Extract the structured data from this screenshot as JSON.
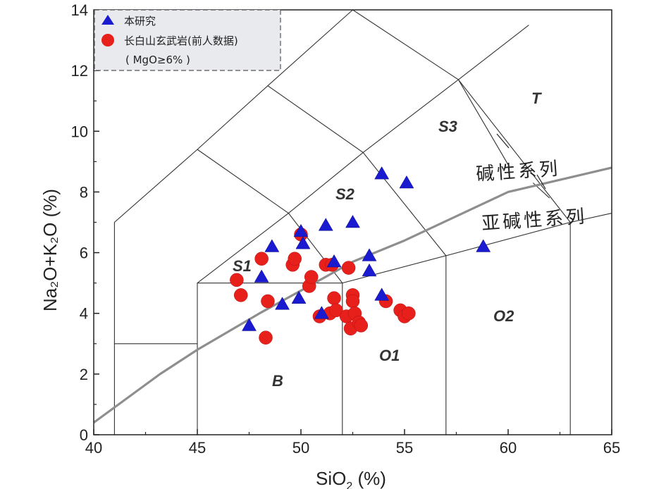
{
  "chart_data": {
    "type": "scatter",
    "xlabel_main": "SiO",
    "xlabel_sub": "2",
    "xlabel_tail": " (%)",
    "ylabel": "Na₂O+K₂O (%)",
    "xlim": [
      40,
      65
    ],
    "ylim": [
      0,
      14
    ],
    "xticks": [
      "40",
      "45",
      "50",
      "55",
      "60",
      "65"
    ],
    "yticks": [
      "0",
      "2",
      "4",
      "6",
      "8",
      "10",
      "12",
      "14"
    ],
    "field_labels": [
      "S1",
      "S2",
      "S3",
      "T",
      "B",
      "O1",
      "O2"
    ],
    "series_labels": {
      "alkaline": "碱性系列",
      "subalkaline": "亚碱性系列"
    },
    "legend": {
      "location": "top-left",
      "entries": [
        "本研究",
        "长白山玄武岩(前人数据)",
        "( MgO≥6% )"
      ]
    },
    "series": [
      {
        "name": "本研究",
        "marker": "triangle",
        "color": "#1a1ad0",
        "points": [
          [
            47.5,
            3.6
          ],
          [
            48.1,
            5.2
          ],
          [
            48.6,
            6.2
          ],
          [
            49.1,
            4.3
          ],
          [
            49.9,
            4.5
          ],
          [
            50.0,
            6.7
          ],
          [
            50.1,
            6.3
          ],
          [
            51.0,
            4.0
          ],
          [
            51.2,
            6.9
          ],
          [
            51.6,
            5.7
          ],
          [
            52.5,
            7.0
          ],
          [
            53.3,
            5.4
          ],
          [
            53.3,
            5.9
          ],
          [
            53.9,
            4.6
          ],
          [
            53.9,
            8.6
          ],
          [
            55.1,
            8.3
          ],
          [
            58.8,
            6.2
          ]
        ]
      },
      {
        "name": "长白山玄武岩(前人数据)",
        "marker": "circle",
        "color": "#e8201c",
        "points": [
          [
            46.9,
            5.1
          ],
          [
            47.1,
            4.6
          ],
          [
            48.1,
            5.8
          ],
          [
            48.3,
            3.2
          ],
          [
            48.4,
            4.4
          ],
          [
            49.6,
            5.6
          ],
          [
            49.7,
            5.8
          ],
          [
            50.0,
            6.6
          ],
          [
            50.4,
            4.9
          ],
          [
            50.5,
            5.2
          ],
          [
            50.9,
            3.9
          ],
          [
            51.2,
            5.6
          ],
          [
            51.4,
            4.0
          ],
          [
            51.5,
            5.6
          ],
          [
            51.6,
            4.5
          ],
          [
            51.7,
            4.1
          ],
          [
            52.2,
            3.9
          ],
          [
            52.3,
            5.5
          ],
          [
            52.4,
            3.5
          ],
          [
            52.5,
            4.6
          ],
          [
            52.5,
            4.4
          ],
          [
            52.6,
            4.0
          ],
          [
            52.8,
            3.7
          ],
          [
            52.9,
            3.6
          ],
          [
            54.1,
            4.4
          ],
          [
            54.8,
            4.1
          ],
          [
            55.0,
            3.9
          ],
          [
            55.2,
            4.0
          ]
        ]
      }
    ],
    "tas_fields": [
      [
        [
          41,
          0
        ],
        [
          41,
          3
        ],
        [
          45,
          3
        ]
      ],
      [
        [
          45,
          0
        ],
        [
          45,
          5
        ],
        [
          52,
          5
        ],
        [
          52,
          0
        ]
      ],
      [
        [
          52,
          5
        ],
        [
          57,
          5.9
        ],
        [
          57,
          0
        ]
      ],
      [
        [
          57,
          5.9
        ],
        [
          63,
          7
        ],
        [
          63,
          0
        ]
      ],
      [
        [
          41,
          3
        ],
        [
          41,
          7
        ],
        [
          45,
          9.4
        ],
        [
          48.4,
          11.5
        ],
        [
          52.5,
          14
        ]
      ],
      [
        [
          45,
          5
        ],
        [
          49.4,
          7.3
        ],
        [
          52,
          5
        ]
      ],
      [
        [
          45,
          9.4
        ],
        [
          49.4,
          7.3
        ],
        [
          53,
          9.3
        ],
        [
          57.6,
          11.7
        ],
        [
          61,
          13.5
        ]
      ],
      [
        [
          48.4,
          11.5
        ],
        [
          53,
          9.3
        ],
        [
          57,
          5.9
        ]
      ],
      [
        [
          52.5,
          14
        ],
        [
          57.6,
          11.7
        ],
        [
          63,
          7
        ],
        [
          65,
          7.3
        ]
      ],
      [
        [
          57.6,
          11.7
        ],
        [
          60,
          8.9
        ]
      ],
      [
        [
          61.2,
          8.3
        ],
        [
          62,
          7.8
        ]
      ]
    ],
    "alkaline_boundary": [
      [
        40,
        0.4
      ],
      [
        43.2,
        2.0
      ],
      [
        45,
        2.8
      ],
      [
        48,
        4.0
      ],
      [
        50,
        4.75
      ],
      [
        52.5,
        5.7
      ],
      [
        55,
        6.4
      ],
      [
        60,
        8.0
      ],
      [
        65,
        8.8
      ]
    ]
  }
}
